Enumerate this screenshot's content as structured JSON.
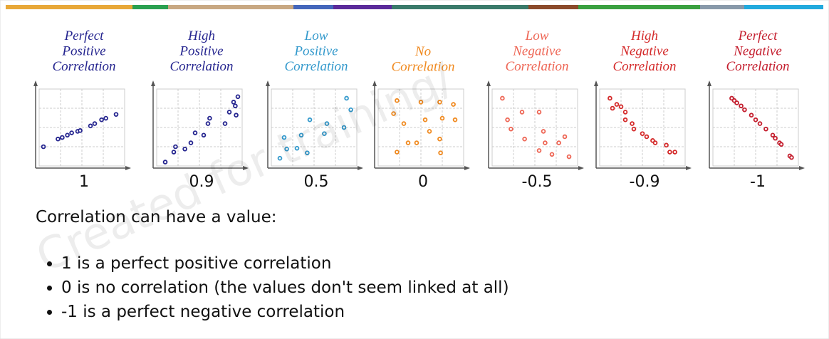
{
  "panels": [
    {
      "title": [
        "Perfect",
        "Positive",
        "Correlation"
      ],
      "value": 1,
      "color": "#25258f",
      "x": [
        0.05,
        0.22,
        0.27,
        0.33,
        0.38,
        0.45,
        0.48,
        0.6,
        0.65,
        0.73,
        0.78,
        0.9
      ],
      "y": [
        0.25,
        0.35,
        0.37,
        0.4,
        0.43,
        0.45,
        0.46,
        0.52,
        0.55,
        0.6,
        0.62,
        0.67
      ]
    },
    {
      "title": [
        "High",
        "Positive",
        "Correlation"
      ],
      "value": 0.9,
      "color": "#25258f",
      "x": [
        0.1,
        0.2,
        0.22,
        0.33,
        0.4,
        0.45,
        0.55,
        0.6,
        0.62,
        0.8,
        0.85,
        0.9,
        0.92,
        0.95,
        0.93
      ],
      "y": [
        0.05,
        0.18,
        0.25,
        0.22,
        0.3,
        0.43,
        0.4,
        0.55,
        0.62,
        0.55,
        0.7,
        0.83,
        0.78,
        0.9,
        0.66
      ]
    },
    {
      "title": [
        "Low",
        "Positive",
        "Correlation"
      ],
      "value": 0.5,
      "color": "#3399cc",
      "x": [
        0.1,
        0.15,
        0.18,
        0.3,
        0.35,
        0.42,
        0.45,
        0.62,
        0.65,
        0.85,
        0.88,
        0.93
      ],
      "y": [
        0.1,
        0.37,
        0.22,
        0.23,
        0.4,
        0.17,
        0.6,
        0.42,
        0.55,
        0.5,
        0.88,
        0.73
      ]
    },
    {
      "title": [
        "No",
        "Correlation"
      ],
      "value": 0,
      "color": "#f08a20",
      "x": [
        0.22,
        0.18,
        0.3,
        0.35,
        0.22,
        0.5,
        0.55,
        0.6,
        0.72,
        0.75,
        0.72,
        0.73,
        0.88,
        0.9,
        0.45
      ],
      "y": [
        0.85,
        0.68,
        0.55,
        0.3,
        0.18,
        0.83,
        0.6,
        0.45,
        0.83,
        0.62,
        0.35,
        0.17,
        0.8,
        0.6,
        0.3
      ]
    },
    {
      "title": [
        "Low",
        "Negative",
        "Correlation"
      ],
      "value": -0.5,
      "color": "#ee6655",
      "x": [
        0.12,
        0.18,
        0.22,
        0.35,
        0.38,
        0.55,
        0.6,
        0.62,
        0.55,
        0.7,
        0.78,
        0.85,
        0.9
      ],
      "y": [
        0.88,
        0.6,
        0.48,
        0.7,
        0.35,
        0.7,
        0.45,
        0.3,
        0.2,
        0.15,
        0.3,
        0.38,
        0.12
      ]
    },
    {
      "title": [
        "High",
        "Negative",
        "Correlation"
      ],
      "value": -0.9,
      "color": "#d42a2a",
      "x": [
        0.12,
        0.15,
        0.2,
        0.25,
        0.3,
        0.3,
        0.38,
        0.4,
        0.5,
        0.55,
        0.62,
        0.65,
        0.78,
        0.82,
        0.88
      ],
      "y": [
        0.88,
        0.75,
        0.8,
        0.77,
        0.7,
        0.6,
        0.55,
        0.48,
        0.42,
        0.38,
        0.33,
        0.3,
        0.27,
        0.18,
        0.18
      ]
    },
    {
      "title": [
        "Perfect",
        "Negative",
        "Correlation"
      ],
      "value": -1,
      "color": "#c41e2e",
      "x": [
        0.22,
        0.25,
        0.28,
        0.33,
        0.37,
        0.45,
        0.5,
        0.55,
        0.62,
        0.7,
        0.73,
        0.78,
        0.8,
        0.9,
        0.92
      ],
      "y": [
        0.88,
        0.85,
        0.82,
        0.78,
        0.73,
        0.66,
        0.6,
        0.55,
        0.48,
        0.4,
        0.36,
        0.3,
        0.28,
        0.13,
        0.11
      ]
    }
  ],
  "body": {
    "intro": "Correlation can have a value:",
    "bullets": [
      "1 is a perfect positive correlation",
      "0 is no correlation (the values don't seem linked at all)",
      "-1 is a perfect negative correlation"
    ]
  },
  "watermark": "Created for training/"
}
